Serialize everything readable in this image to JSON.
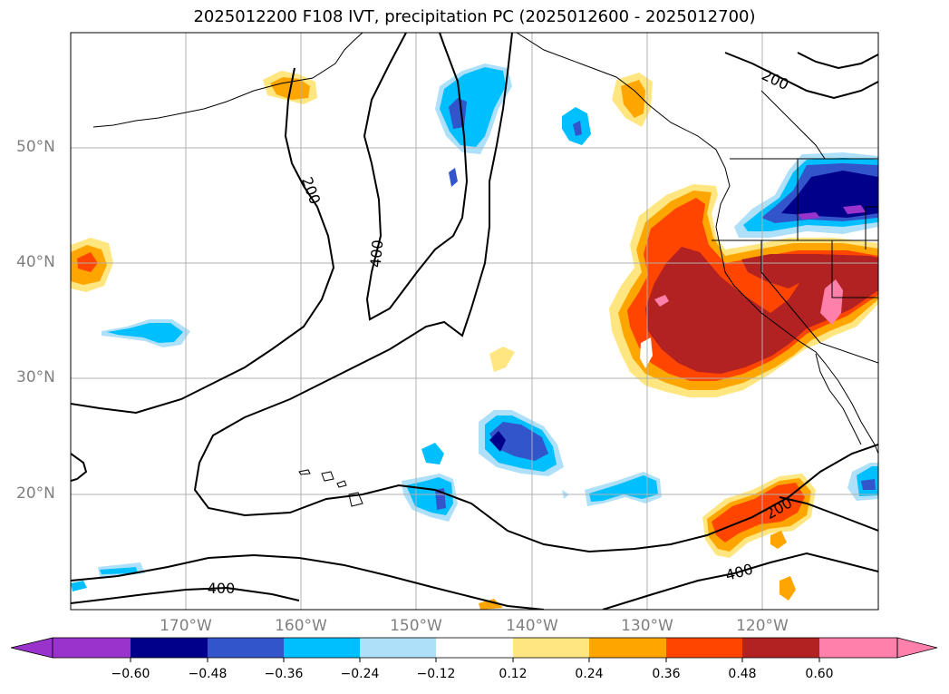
{
  "title": "2025012200 F108 IVT, precipitation PC (2025012600 - 2025012700)",
  "lat_labels": [
    "50°N",
    "40°N",
    "30°N",
    "20°N"
  ],
  "lon_labels": [
    "170°W",
    "160°W",
    "150°W",
    "140°W",
    "130°W",
    "120°W"
  ],
  "contour_labels": [
    "200",
    "200",
    "400",
    "400",
    "400",
    "200"
  ],
  "colorbar": {
    "ticks": [
      "−0.60",
      "−0.48",
      "−0.36",
      "−0.24",
      "−0.12",
      "0.12",
      "0.24",
      "0.36",
      "0.48",
      "0.60"
    ],
    "colors": [
      "#9933cc",
      "#00008b",
      "#3355cc",
      "#00bfff",
      "#aee0fa",
      "#ffffff",
      "#ffe680",
      "#ffa500",
      "#ff4500",
      "#b22222",
      "#ff80aa"
    ]
  }
}
